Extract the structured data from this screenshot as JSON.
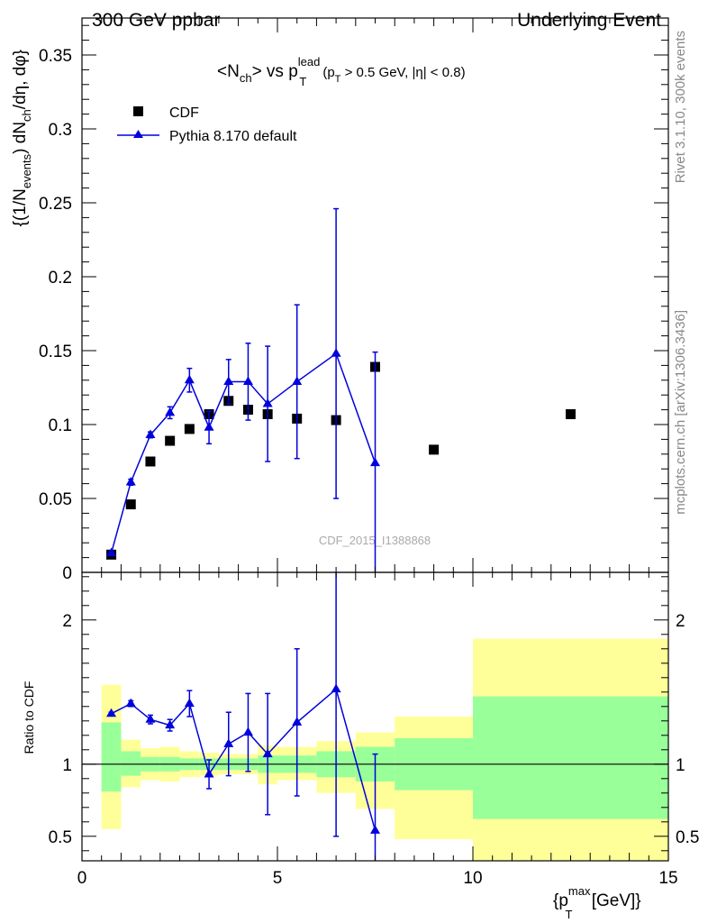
{
  "header": {
    "left": "300 GeV ppbar",
    "right": "Underlying Event"
  },
  "side_labels": {
    "rivet": "Rivet 3.1.10,  300k events",
    "mcplots": "mcplots.cern.ch [arXiv:1306.3436]"
  },
  "watermark": "CDF_2015_I1388868",
  "colors": {
    "mc": "#0000dd",
    "band_inner": "#99ff99",
    "band_outer": "#ffff99",
    "data": "#000000"
  },
  "chart_data": [
    {
      "type": "scatter",
      "panel": "main",
      "title_parts": {
        "open": "<N",
        "sub_ch": "ch",
        "mid": "> vs p",
        "sup": "lead",
        "sub_t": "T",
        "cut_p": "(p",
        "cut_t": "T",
        "cut_rest": " > 0.5 GeV, |η| < 0.8)"
      },
      "ylabel": "{(1/N_events) dN_ch/dη, dφ}",
      "ylabel_parts": {
        "a": "{(1/N",
        "sub_events": "events",
        "b": ") dN",
        "sub_ch": "ch",
        "c": "/dη, dφ}"
      },
      "xlim": [
        0,
        15
      ],
      "ylim": [
        0,
        0.375
      ],
      "yticks": [
        "0",
        "0.05",
        "0.1",
        "0.15",
        "0.2",
        "0.25",
        "0.3",
        "0.35"
      ],
      "legend_position": "top-left",
      "series": [
        {
          "name": "CDF",
          "marker": "square",
          "x": [
            0.75,
            1.25,
            1.75,
            2.25,
            2.75,
            3.25,
            3.75,
            4.25,
            4.75,
            5.5,
            6.5,
            7.5,
            9.0,
            12.5
          ],
          "y": [
            0.012,
            0.046,
            0.075,
            0.089,
            0.097,
            0.107,
            0.116,
            0.11,
            0.107,
            0.104,
            0.103,
            0.139,
            0.083,
            0.107
          ]
        },
        {
          "name": "Pythia 8.170 default",
          "marker": "triangle",
          "x": [
            0.75,
            1.25,
            1.75,
            2.25,
            2.75,
            3.25,
            3.75,
            4.25,
            4.75,
            5.5,
            6.5,
            7.5
          ],
          "y": [
            0.013,
            0.061,
            0.093,
            0.108,
            0.13,
            0.098,
            0.129,
            0.129,
            0.114,
            0.129,
            0.148,
            0.074
          ],
          "err": [
            0.001,
            0.002,
            0.002,
            0.004,
            0.008,
            0.011,
            0.015,
            0.026,
            0.039,
            0.052,
            0.098,
            0.075
          ]
        }
      ]
    },
    {
      "type": "scatter",
      "panel": "ratio",
      "ylabel": "Ratio to CDF",
      "xlabel": "{p_T^max [GeV]}",
      "xlabel_parts": {
        "open": "{p",
        "sub_t": "T",
        "sup": "max",
        "rest": " [GeV]}"
      },
      "xlim": [
        0,
        15
      ],
      "ylim": [
        0.33,
        2.33
      ],
      "yticks": [
        "0.5",
        "1",
        "2"
      ],
      "xticks": [
        "0",
        "5",
        "10",
        "15"
      ],
      "bands": [
        {
          "x0": 0.5,
          "x1": 1.0,
          "inner": [
            0.81,
            1.29
          ],
          "outer": [
            0.55,
            1.55
          ]
        },
        {
          "x0": 1.0,
          "x1": 1.5,
          "inner": [
            0.92,
            1.09
          ],
          "outer": [
            0.84,
            1.17
          ]
        },
        {
          "x0": 1.5,
          "x1": 2.0,
          "inner": [
            0.95,
            1.05
          ],
          "outer": [
            0.89,
            1.11
          ]
        },
        {
          "x0": 2.0,
          "x1": 2.5,
          "inner": [
            0.95,
            1.05
          ],
          "outer": [
            0.88,
            1.12
          ]
        },
        {
          "x0": 2.5,
          "x1": 3.0,
          "inner": [
            0.96,
            1.04
          ],
          "outer": [
            0.91,
            1.09
          ]
        },
        {
          "x0": 3.0,
          "x1": 3.5,
          "inner": [
            0.96,
            1.04
          ],
          "outer": [
            0.92,
            1.08
          ]
        },
        {
          "x0": 3.5,
          "x1": 4.0,
          "inner": [
            0.96,
            1.04
          ],
          "outer": [
            0.93,
            1.07
          ]
        },
        {
          "x0": 4.0,
          "x1": 4.5,
          "inner": [
            0.96,
            1.04
          ],
          "outer": [
            0.93,
            1.07
          ]
        },
        {
          "x0": 4.5,
          "x1": 5.0,
          "inner": [
            0.94,
            1.06
          ],
          "outer": [
            0.86,
            1.13
          ]
        },
        {
          "x0": 5.0,
          "x1": 6.0,
          "inner": [
            0.94,
            1.06
          ],
          "outer": [
            0.89,
            1.12
          ]
        },
        {
          "x0": 6.0,
          "x1": 7.0,
          "inner": [
            0.91,
            1.09
          ],
          "outer": [
            0.8,
            1.16
          ]
        },
        {
          "x0": 7.0,
          "x1": 8.0,
          "inner": [
            0.88,
            1.12
          ],
          "outer": [
            0.69,
            1.22
          ]
        },
        {
          "x0": 8.0,
          "x1": 10.0,
          "inner": [
            0.82,
            1.18
          ],
          "outer": [
            0.48,
            1.33
          ]
        },
        {
          "x0": 10.0,
          "x1": 15.0,
          "inner": [
            0.62,
            1.47
          ],
          "outer": [
            0.33,
            1.87
          ]
        }
      ],
      "series": [
        {
          "name": "Pythia 8.170 default",
          "marker": "triangle",
          "x": [
            0.75,
            1.25,
            1.75,
            2.25,
            2.75,
            3.25,
            3.75,
            4.25,
            4.75,
            5.5,
            6.5,
            7.5
          ],
          "y": [
            1.35,
            1.42,
            1.31,
            1.27,
            1.42,
            0.93,
            1.14,
            1.22,
            1.07,
            1.29,
            1.52,
            0.54
          ],
          "err": [
            0.01,
            0.02,
            0.03,
            0.04,
            0.09,
            0.1,
            0.22,
            0.27,
            0.42,
            0.51,
            1.02,
            0.53
          ]
        }
      ]
    }
  ]
}
